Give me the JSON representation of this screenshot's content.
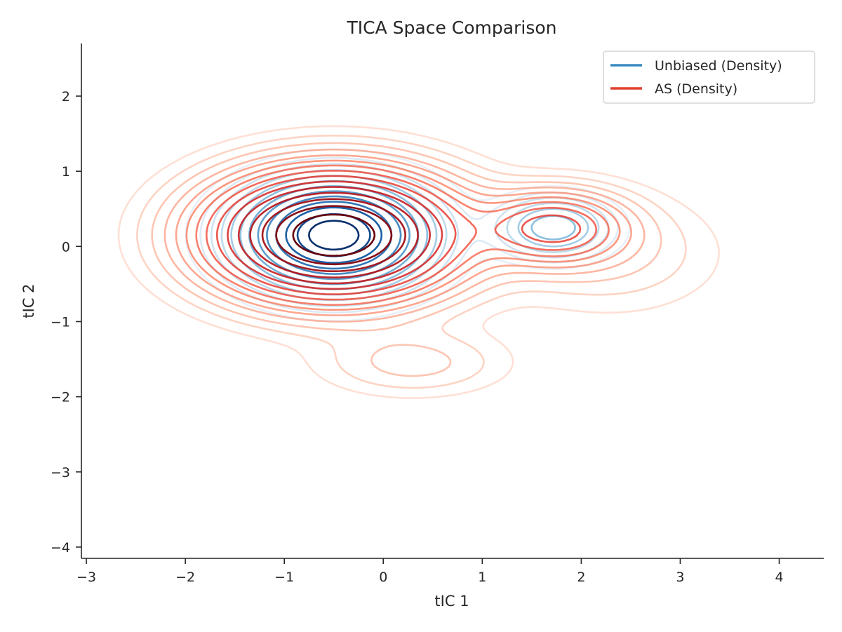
{
  "chart_data": {
    "type": "contour",
    "title": "TICA Space Comparison",
    "xlabel": "tIC 1",
    "ylabel": "tIC 2",
    "xlim": [
      -3.05,
      4.45
    ],
    "ylim": [
      -4.15,
      2.7
    ],
    "xticks": [
      -3,
      -2,
      -1,
      0,
      1,
      2,
      3,
      4
    ],
    "yticks": [
      -4,
      -3,
      -2,
      -1,
      0,
      1,
      2
    ],
    "xtick_labels": [
      "−3",
      "−2",
      "−1",
      "0",
      "1",
      "2",
      "3",
      "4"
    ],
    "ytick_labels": [
      "−4",
      "−3",
      "−2",
      "−1",
      "0",
      "1",
      "2"
    ],
    "grid": false,
    "legend": {
      "position": "top-right",
      "entries": [
        {
          "label": "Unbiased (Density)",
          "color": "#3b8bc2"
        },
        {
          "label": "AS (Density)",
          "color": "#e0412f"
        }
      ]
    },
    "series": [
      {
        "name": "Unbiased (Density)",
        "colormap": "Blues",
        "components": [
          {
            "x": -0.5,
            "y": 0.15,
            "sx": 0.55,
            "sy": 0.42,
            "w": 1.0
          },
          {
            "x": 1.72,
            "y": 0.25,
            "sx": 0.35,
            "sy": 0.25,
            "w": 0.28
          },
          {
            "x": 0.9,
            "y": -1.5,
            "sx": 0.3,
            "sy": 0.3,
            "w": 0.02
          }
        ],
        "levels": [
          0.025,
          0.05,
          0.08,
          0.12,
          0.17,
          0.23,
          0.3,
          0.38,
          0.47,
          0.57,
          0.68,
          0.8,
          0.9
        ]
      },
      {
        "name": "AS (Density)",
        "colormap": "Reds",
        "components": [
          {
            "x": -0.5,
            "y": 0.15,
            "sx": 0.75,
            "sy": 0.5,
            "w": 1.0
          },
          {
            "x": 1.72,
            "y": 0.25,
            "sx": 0.45,
            "sy": 0.3,
            "w": 0.3
          },
          {
            "x": 0.3,
            "y": -1.55,
            "sx": 0.6,
            "sy": 0.28,
            "w": 0.06
          },
          {
            "x": 2.3,
            "y": -0.1,
            "sx": 0.7,
            "sy": 0.5,
            "w": 0.05
          }
        ],
        "levels": [
          0.015,
          0.03,
          0.05,
          0.075,
          0.105,
          0.14,
          0.18,
          0.23,
          0.29,
          0.36,
          0.44,
          0.53,
          0.63,
          0.74,
          0.86
        ]
      }
    ]
  }
}
